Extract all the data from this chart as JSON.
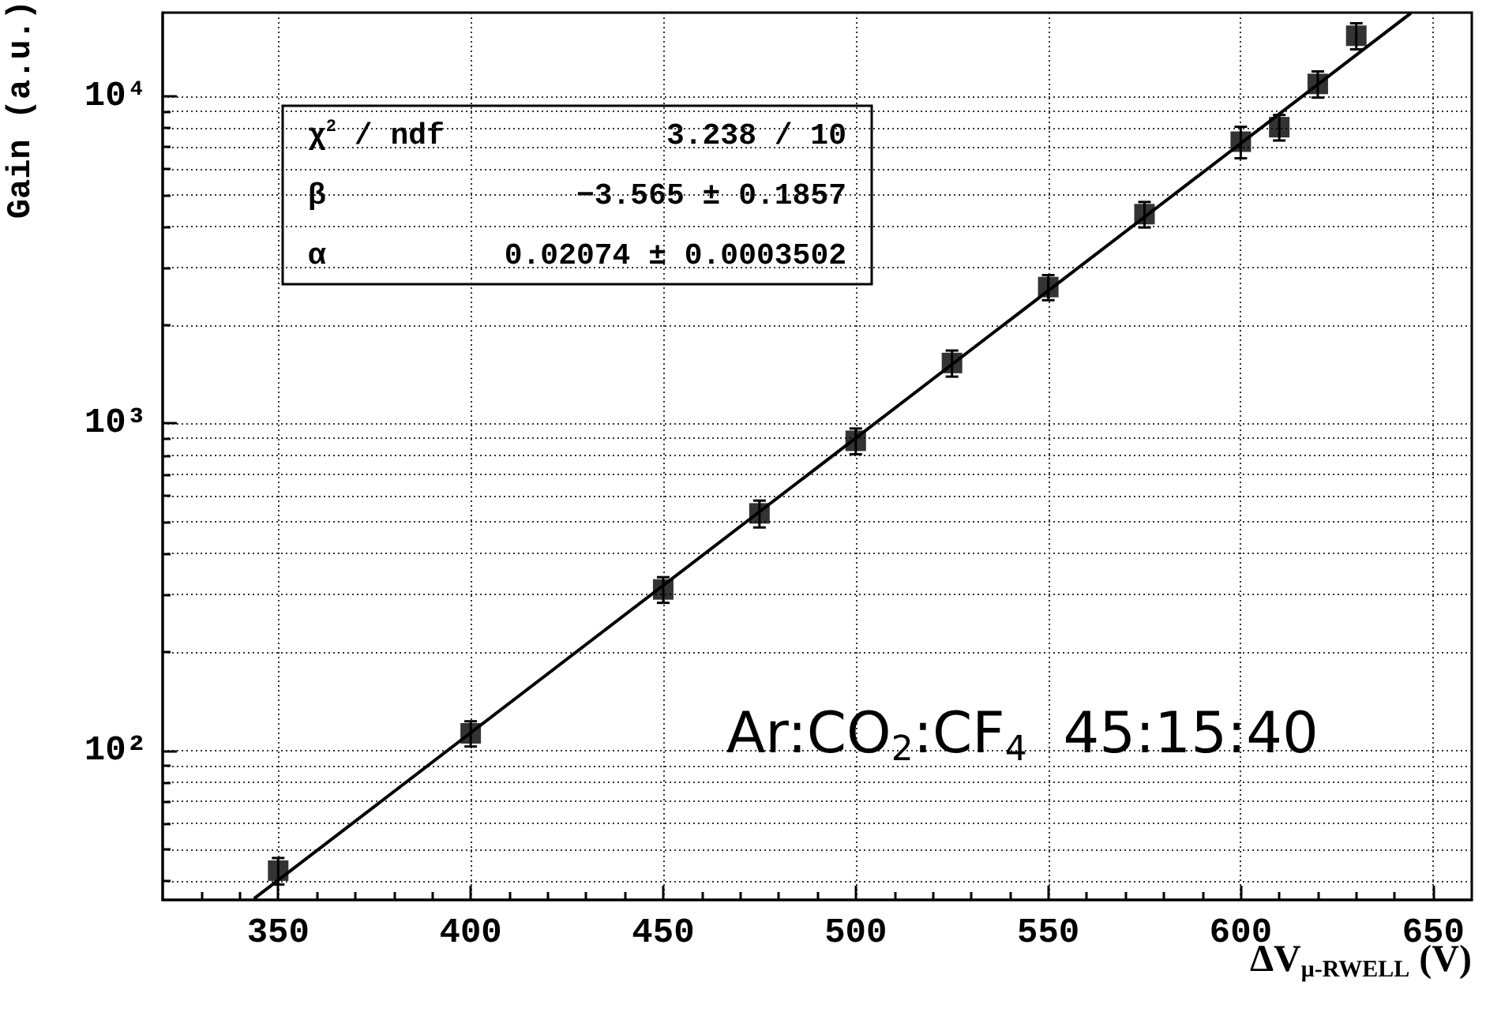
{
  "chart_data": {
    "type": "scatter",
    "xlabel": "ΔV$_{μ-RWELL}$ (V)",
    "ylabel": "Gain (a.u.)",
    "xlim": [
      320,
      660
    ],
    "ylim": [
      35,
      18000
    ],
    "log": "y",
    "grid": true,
    "xticks": [
      {
        "value": 330,
        "label": null
      },
      {
        "value": 340,
        "label": null
      },
      350,
      {
        "value": 360,
        "label": null
      },
      {
        "value": 370,
        "label": null
      },
      {
        "value": 380,
        "label": null
      },
      {
        "value": 390,
        "label": null
      },
      400,
      {
        "value": 410,
        "label": null
      },
      {
        "value": 420,
        "label": null
      },
      {
        "value": 430,
        "label": null
      },
      {
        "value": 440,
        "label": null
      },
      450,
      {
        "value": 460,
        "label": null
      },
      {
        "value": 470,
        "label": null
      },
      {
        "value": 480,
        "label": null
      },
      {
        "value": 490,
        "label": null
      },
      500,
      {
        "value": 510,
        "label": null
      },
      {
        "value": 520,
        "label": null
      },
      {
        "value": 530,
        "label": null
      },
      {
        "value": 540,
        "label": null
      },
      550,
      {
        "value": 560,
        "label": null
      },
      {
        "value": 570,
        "label": null
      },
      {
        "value": 580,
        "label": null
      },
      {
        "value": 590,
        "label": null
      },
      600,
      {
        "value": 610,
        "label": null
      },
      {
        "value": 620,
        "label": null
      },
      {
        "value": 630,
        "label": null
      },
      {
        "value": 640,
        "label": null
      },
      650
    ],
    "yticks": [
      {
        "value": 40,
        "label": null
      },
      {
        "value": 50,
        "label": null
      },
      {
        "value": 60,
        "label": null
      },
      {
        "value": 70,
        "label": null
      },
      {
        "value": 80,
        "label": null
      },
      {
        "value": 90,
        "label": null
      },
      {
        "value": 100,
        "label": "10²"
      },
      {
        "value": 200,
        "label": null
      },
      {
        "value": 300,
        "label": null
      },
      {
        "value": 400,
        "label": null
      },
      {
        "value": 500,
        "label": null
      },
      {
        "value": 600,
        "label": null
      },
      {
        "value": 700,
        "label": null
      },
      {
        "value": 800,
        "label": null
      },
      {
        "value": 900,
        "label": null
      },
      {
        "value": 1000,
        "label": "10³"
      },
      {
        "value": 2000,
        "label": null
      },
      {
        "value": 3000,
        "label": null
      },
      {
        "value": 4000,
        "label": null
      },
      {
        "value": 5000,
        "label": null
      },
      {
        "value": 6000,
        "label": null
      },
      {
        "value": 7000,
        "label": null
      },
      {
        "value": 8000,
        "label": null
      },
      {
        "value": 9000,
        "label": null
      },
      {
        "value": 10000,
        "label": "10⁴"
      }
    ],
    "series": [
      {
        "color": "#000000",
        "marker": "square",
        "x": [
          350,
          400,
          450,
          475,
          500,
          525,
          550,
          575,
          600,
          610,
          620,
          630
        ],
        "values": [
          43,
          113,
          311,
          531,
          885,
          1530,
          2610,
          4360,
          7260,
          8040,
          10900,
          15300
        ],
        "errors": [
          4,
          10,
          28,
          50,
          80,
          140,
          230,
          390,
          800,
          720,
          1000,
          1400
        ]
      },
      {
        "type": "line",
        "color": "#000000",
        "marker": "none",
        "line_style": "solid",
        "x": [
          344,
          644
        ],
        "values": [
          35.5,
          17870
        ]
      }
    ],
    "annotations": [
      "χ$^{2}$ / ndf",
      "3.238 / 10",
      "β",
      "−3.565 ± 0.1857",
      "α",
      "0.02074 ± 0.0003502",
      "Ar:CO$_{2}$:CF$_{4}$  45:15:40"
    ]
  }
}
